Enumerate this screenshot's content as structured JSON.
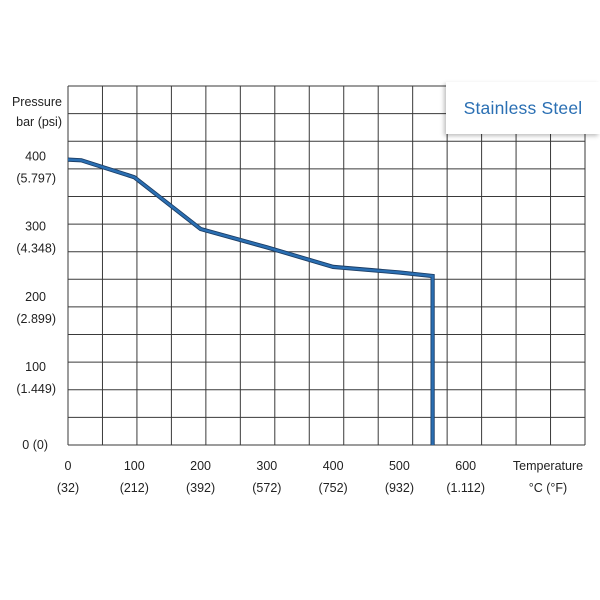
{
  "chart_data": {
    "type": "line",
    "title": "Stainless Steel",
    "series": [
      {
        "name": "Stainless Steel",
        "x": [
          0,
          20,
          100,
          200,
          300,
          400,
          500,
          550,
          550
        ],
        "y": [
          407,
          406,
          382,
          308,
          282,
          254,
          246,
          241,
          0
        ]
      }
    ],
    "xlim": [
      0,
      780
    ],
    "ylim": [
      0,
      512
    ],
    "grid": true,
    "x_ticks": [
      {
        "value": 0,
        "label": "0",
        "sublabel": "(32)"
      },
      {
        "value": 100,
        "label": "100",
        "sublabel": "(212)"
      },
      {
        "value": 200,
        "label": "200",
        "sublabel": "(392)"
      },
      {
        "value": 300,
        "label": "300",
        "sublabel": "(572)"
      },
      {
        "value": 400,
        "label": "400",
        "sublabel": "(752)"
      },
      {
        "value": 500,
        "label": "500",
        "sublabel": "(932)"
      },
      {
        "value": 600,
        "label": "600",
        "sublabel": "(1.112)"
      }
    ],
    "y_ticks": [
      {
        "value": 0,
        "label": "0 (0)",
        "sublabel": ""
      },
      {
        "value": 100,
        "label": "100",
        "sublabel": "(1.449)"
      },
      {
        "value": 200,
        "label": "200",
        "sublabel": "(2.899)"
      },
      {
        "value": 300,
        "label": "300",
        "sublabel": "(4.348)"
      },
      {
        "value": 400,
        "label": "400",
        "sublabel": "(5.797)"
      }
    ],
    "ylabel": [
      "Pressure",
      "bar (psi)"
    ],
    "xlabel": [
      "Temperature",
      "°C (°F)"
    ],
    "legend_position": "top-right"
  },
  "colors": {
    "line": "#2a6fb3",
    "line_outline": "#1c3e66",
    "grid": "#3a3a3a",
    "legend_text": "#2a6fb3"
  }
}
